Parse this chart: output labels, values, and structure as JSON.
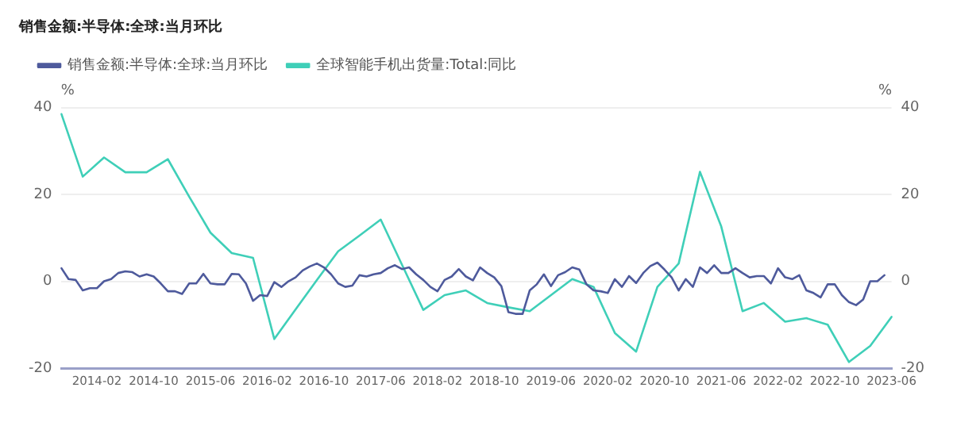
{
  "chart_data": {
    "type": "line",
    "title": "销售金额:半导体:全球:当月环比",
    "ylabel": "%",
    "y2label": "%",
    "categories": [
      null,
      null,
      null,
      null,
      null,
      "2014-02",
      null,
      null,
      null,
      null,
      null,
      null,
      null,
      "2014-10",
      null,
      null,
      null,
      null,
      null,
      null,
      null,
      "2015-06",
      null,
      null,
      null,
      null,
      null,
      null,
      null,
      "2016-02",
      null,
      null,
      null,
      null,
      null,
      null,
      null,
      "2016-10",
      null,
      null,
      null,
      null,
      null,
      null,
      null,
      "2017-06",
      null,
      null,
      null,
      null,
      null,
      null,
      null,
      "2018-02",
      null,
      null,
      null,
      null,
      null,
      null,
      null,
      "2018-10",
      null,
      null,
      null,
      null,
      null,
      null,
      null,
      "2019-06",
      null,
      null,
      null,
      null,
      null,
      null,
      null,
      "2020-02",
      null,
      null,
      null,
      null,
      null,
      null,
      null,
      "2020-10",
      null,
      null,
      null,
      null,
      null,
      null,
      null,
      "2021-06",
      null,
      null,
      null,
      null,
      null,
      null,
      null,
      "2022-02",
      null,
      null,
      null,
      null,
      null,
      null,
      null,
      "2022-10",
      null,
      null,
      null,
      null,
      null,
      null,
      null,
      "2023-06"
    ],
    "series": [
      {
        "name": "销售金额:半导体:全球:当月环比",
        "color": "#4e5a9c",
        "values": [
          3.0,
          0.5,
          0.3,
          -2.1,
          -1.6,
          -1.6,
          0,
          0.5,
          1.9,
          2.3,
          2.1,
          1.1,
          1.6,
          1.1,
          -0.5,
          -2.3,
          -2.3,
          -2.9,
          -0.5,
          -0.5,
          1.7,
          -0.5,
          -0.7,
          -0.7,
          1.7,
          1.6,
          -0.5,
          -4.5,
          -3.2,
          -3.4,
          -0.2,
          -1.3,
          0,
          0.9,
          2.5,
          3.4,
          4.1,
          3.2,
          1.6,
          -0.5,
          -1.3,
          -1.0,
          1.4,
          1.1,
          1.6,
          1.9,
          3.0,
          3.7,
          2.8,
          3.2,
          1.6,
          0.3,
          -1.3,
          -2.3,
          0.3,
          1.1,
          2.8,
          1.1,
          0.2,
          3.2,
          1.9,
          0.9,
          -1.1,
          -7.1,
          -7.5,
          -7.5,
          -2.1,
          -0.7,
          1.6,
          -1.1,
          1.4,
          2.1,
          3.2,
          2.7,
          -0.7,
          -2.1,
          -2.3,
          -2.7,
          0.5,
          -1.3,
          1.2,
          -0.4,
          1.9,
          3.5,
          4.3,
          2.7,
          0.9,
          -2.1,
          0.5,
          -1.3,
          3.2,
          1.9,
          3.7,
          1.9,
          1.9,
          3.0,
          1.9,
          0.9,
          1.2,
          1.2,
          -0.5,
          3.0,
          0.9,
          0.5,
          1.4,
          -2.1,
          -2.7,
          -3.7,
          -0.7,
          -0.7,
          -3.2,
          -4.8,
          -5.5,
          -4.2,
          0,
          0,
          1.4,
          null
        ]
      },
      {
        "name": "全球智能手机出货量:Total:同比",
        "color": "#3fcfb8",
        "axis": "y2",
        "values": [
          38.5,
          null,
          null,
          24.1,
          null,
          null,
          28.5,
          null,
          null,
          25.1,
          null,
          null,
          25.1,
          null,
          null,
          28.1,
          null,
          null,
          19.5,
          null,
          null,
          11.2,
          null,
          null,
          6.5,
          null,
          null,
          5.4,
          null,
          null,
          -13.3,
          null,
          null,
          -6.5,
          null,
          null,
          0.3,
          null,
          null,
          6.9,
          null,
          null,
          10.5,
          null,
          null,
          14.2,
          null,
          null,
          3.8,
          null,
          null,
          -6.6,
          null,
          null,
          -3.2,
          null,
          null,
          -2.1,
          null,
          null,
          -5.0,
          null,
          null,
          -6.0,
          null,
          null,
          -6.9,
          null,
          null,
          -3.2,
          null,
          null,
          0.5,
          null,
          null,
          -1.3,
          null,
          null,
          -11.9,
          null,
          null,
          -16.2,
          null,
          null,
          -1.3,
          null,
          null,
          4.1,
          null,
          null,
          25.2,
          null,
          null,
          12.6,
          null,
          null,
          -6.9,
          null,
          null,
          -5.0,
          null,
          null,
          -9.3,
          null,
          null,
          -8.5,
          null,
          null,
          -10.0,
          null,
          null,
          -18.6,
          null,
          null,
          -14.9,
          null,
          null,
          -8.2
        ]
      }
    ],
    "ylim": [
      -20,
      40
    ],
    "yticks": [
      -20,
      0,
      20,
      40
    ],
    "y2lim": [
      -20,
      40
    ],
    "y2ticks": [
      -20,
      0,
      20,
      40
    ],
    "grid": "y",
    "legend": "top left"
  }
}
